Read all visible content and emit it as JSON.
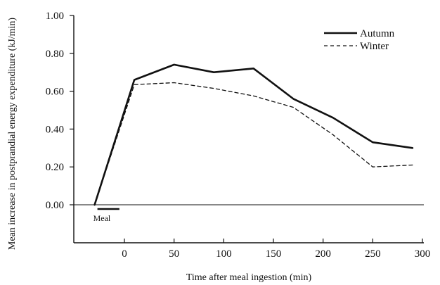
{
  "chart_data": {
    "type": "line",
    "title": "",
    "xlabel": "Time after meal ingestion (min)",
    "ylabel": "Mean increase in postprandial energy expenditure (kJ/min)",
    "xlim": [
      -42,
      300
    ],
    "ylim": [
      -0.2,
      1.0
    ],
    "x_ticks": [
      0,
      50,
      100,
      150,
      200,
      250,
      300
    ],
    "x_tick_labels": [
      "0",
      "50",
      "100",
      "150",
      "200",
      "250",
      "300"
    ],
    "y_ticks": [
      0.0,
      0.2,
      0.4,
      0.6,
      0.8,
      1.0
    ],
    "y_tick_labels": [
      "0.00",
      "0.20",
      "0.40",
      "0.60",
      "0.80",
      "1.00"
    ],
    "grid": false,
    "zero_line": true,
    "legend_position": "top-right",
    "series": [
      {
        "name": "Autumn",
        "style": "solid",
        "color": "#111111",
        "x": [
          -30,
          10,
          50,
          90,
          130,
          170,
          210,
          250,
          290
        ],
        "y": [
          0.0,
          0.66,
          0.74,
          0.7,
          0.72,
          0.56,
          0.46,
          0.33,
          0.3
        ]
      },
      {
        "name": "Winter",
        "style": "dashed",
        "color": "#111111",
        "x": [
          -30,
          10,
          50,
          90,
          130,
          170,
          210,
          250,
          290
        ],
        "y": [
          0.0,
          0.635,
          0.645,
          0.615,
          0.575,
          0.515,
          0.37,
          0.2,
          0.21
        ]
      }
    ],
    "annotations": [
      {
        "text": "Meal",
        "x_start": -30,
        "x_end": -10,
        "y": -0.02
      }
    ]
  }
}
